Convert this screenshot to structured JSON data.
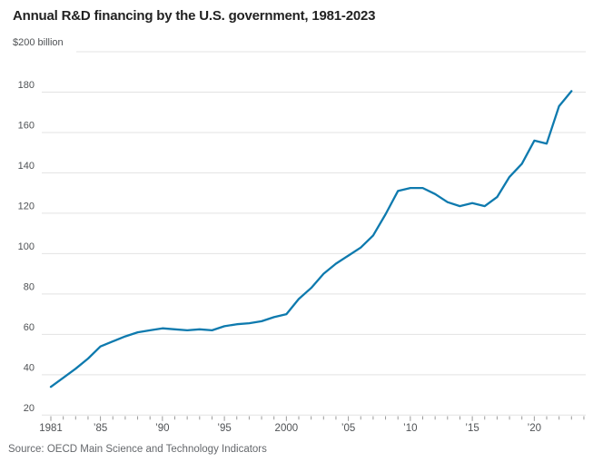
{
  "chart_data": {
    "type": "line",
    "title": "Annual R&D financing by the U.S. government, 1981-2023",
    "ylabel_top": "$200 billion",
    "unit": "billion US dollars",
    "source": "Source: OECD Main Science and Technology Indicators",
    "series_name": "Annual R&D financing by the U.S. government",
    "grid": true,
    "legend": "none",
    "ylim": [
      20,
      200
    ],
    "yticks": [
      20,
      40,
      60,
      80,
      100,
      120,
      140,
      160,
      180
    ],
    "xlim": [
      1981,
      2024
    ],
    "x": [
      1981,
      1982,
      1983,
      1984,
      1985,
      1986,
      1987,
      1988,
      1989,
      1990,
      1991,
      1992,
      1993,
      1994,
      1995,
      1996,
      1997,
      1998,
      1999,
      2000,
      2001,
      2002,
      2003,
      2004,
      2005,
      2006,
      2007,
      2008,
      2009,
      2010,
      2011,
      2012,
      2013,
      2014,
      2015,
      2016,
      2017,
      2018,
      2019,
      2020,
      2021,
      2022,
      2023
    ],
    "values": [
      34,
      38.5,
      43,
      48,
      54,
      56.5,
      59,
      61,
      62,
      63,
      62.5,
      62,
      62.5,
      62,
      64,
      65,
      65.5,
      66.5,
      68.5,
      70,
      77.5,
      83,
      90,
      95,
      99,
      103,
      109,
      119.5,
      131,
      132.5,
      132.5,
      129.5,
      125.5,
      123.5,
      125,
      123.5,
      128,
      138,
      144.5,
      156,
      154.5,
      173,
      180.5
    ],
    "xtick_labels": {
      "1981": "1981",
      "1985": "’85",
      "1990": "’90",
      "1995": "’95",
      "2000": "2000",
      "2005": "’05",
      "2010": "’10",
      "2015": "’15",
      "2020": "’20"
    },
    "line_color": "#0e7aae",
    "grid_color": "#e3e3e3",
    "tick_color": "#9a9a9a",
    "axis_text_color": "#4f5255",
    "title_color": "#222222"
  }
}
